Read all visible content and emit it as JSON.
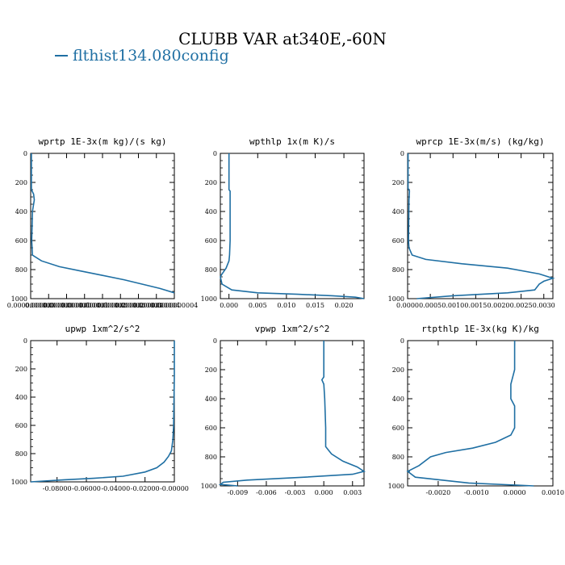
{
  "title": "CLUBB VAR at340E,-60N",
  "legend": {
    "label": "flthist134.080config",
    "color": "#1f6fa3"
  },
  "chart_data": [
    {
      "type": "line",
      "title": "wprtp   1E-3x(m kg)/(s kg)",
      "xlim": [
        0,
        4e-10
      ],
      "ylim": [
        1000,
        0
      ],
      "xticks": [
        0,
        5e-11,
        1e-10,
        1.5e-10,
        2e-10,
        2.5e-10,
        3e-10,
        3.5e-10,
        4e-10
      ],
      "xtick_labels": [
        "0.0000000000",
        "0.0000000000",
        "0.0000000001",
        "0.0000000001",
        "0.0000000002",
        "0.0000000002",
        "0.0000000003",
        "0.0000000004",
        "0.0000000004"
      ],
      "yticks": [
        0,
        200,
        400,
        600,
        800,
        1000
      ],
      "ytick_labels": [
        "0",
        "200",
        "400",
        "600",
        "800",
        "1000"
      ],
      "series": [
        {
          "x": [
            2e-12,
            2e-12,
            8e-12,
            1e-11,
            5e-12,
            3e-12,
            5e-12,
            3e-11,
            8e-11,
            1.4e-10,
            2e-10,
            2.6e-10,
            3.1e-10,
            3.6e-10,
            4e-10
          ],
          "y": [
            0,
            250,
            280,
            320,
            400,
            600,
            700,
            740,
            780,
            810,
            840,
            870,
            900,
            930,
            960
          ]
        }
      ]
    },
    {
      "type": "line",
      "title": "wpthlp   1x(m K)/s",
      "xlim": [
        -0.0015,
        0.0235
      ],
      "ylim": [
        1000,
        0
      ],
      "xticks": [
        0,
        0.005,
        0.01,
        0.015,
        0.02
      ],
      "xtick_labels": [
        "0.000",
        "0.005",
        "0.010",
        "0.015",
        "0.020"
      ],
      "yticks": [
        0,
        200,
        400,
        600,
        800,
        1000
      ],
      "ytick_labels": [
        "0",
        "200",
        "400",
        "600",
        "800",
        "1000"
      ],
      "series": [
        {
          "x": [
            0.0,
            0.0,
            0.0002,
            0.0002,
            0.0002,
            0.0001,
            0.0,
            -0.0005,
            -0.0012,
            -0.0015,
            -0.0012,
            0.0005,
            0.005,
            0.012,
            0.018,
            0.022,
            0.0235
          ],
          "y": [
            0,
            250,
            260,
            400,
            600,
            700,
            740,
            790,
            830,
            850,
            900,
            940,
            960,
            970,
            980,
            990,
            1000
          ]
        }
      ]
    },
    {
      "type": "line",
      "title": "wprcp   1E-3x(m/s) (kg/kg)",
      "xlim": [
        0,
        0.0032
      ],
      "ylim": [
        1000,
        0
      ],
      "xticks": [
        0,
        0.0005,
        0.001,
        0.0015,
        0.002,
        0.0025,
        0.003
      ],
      "xtick_labels": [
        "0.0000",
        "0.0005",
        "0.0010",
        "0.0015",
        "0.0020",
        "0.0025",
        "0.0030"
      ],
      "yticks": [
        0,
        200,
        400,
        600,
        800,
        1000
      ],
      "ytick_labels": [
        "0",
        "200",
        "400",
        "600",
        "800",
        "1000"
      ],
      "series": [
        {
          "x": [
            1e-05,
            1e-05,
            4e-05,
            3e-05,
            2e-05,
            3e-05,
            0.0001,
            0.0004,
            0.0012,
            0.0022,
            0.0029,
            0.0032,
            0.003,
            0.0029,
            0.0028,
            0.0022,
            0.001,
            0.0002
          ],
          "y": [
            0,
            240,
            260,
            320,
            600,
            650,
            700,
            730,
            760,
            790,
            830,
            860,
            880,
            900,
            940,
            960,
            980,
            1000
          ]
        }
      ]
    },
    {
      "type": "line",
      "title": "upwp   1xm^2/s^2",
      "xlim": [
        -0.098,
        0.0
      ],
      "ylim": [
        1000,
        0
      ],
      "xticks": [
        -0.08,
        -0.06,
        -0.04,
        -0.02,
        0
      ],
      "xtick_labels": [
        "-0.08000",
        "-0.06000",
        "-0.04000",
        "-0.02000",
        "-0.00000"
      ],
      "yticks": [
        0,
        200,
        400,
        600,
        800,
        1000
      ],
      "ytick_labels": [
        "0",
        "200",
        "400",
        "600",
        "800",
        "1000"
      ],
      "series": [
        {
          "x": [
            0.0,
            0.0,
            -0.0002,
            -0.0005,
            -0.001,
            -0.002,
            -0.004,
            -0.007,
            -0.012,
            -0.02,
            -0.035,
            -0.055,
            -0.075,
            -0.098
          ],
          "y": [
            0,
            250,
            400,
            600,
            700,
            780,
            820,
            860,
            900,
            930,
            960,
            975,
            985,
            1000
          ]
        }
      ]
    },
    {
      "type": "line",
      "title": "vpwp   1xm^2/s^2",
      "xlim": [
        -0.0108,
        0.0042
      ],
      "ylim": [
        1000,
        0
      ],
      "xticks": [
        -0.009,
        -0.006,
        -0.003,
        0,
        0.003
      ],
      "xtick_labels": [
        "-0.009",
        "-0.006",
        "-0.003",
        "0.000",
        "0.003"
      ],
      "yticks": [
        0,
        200,
        400,
        600,
        800,
        1000
      ],
      "ytick_labels": [
        "0",
        "200",
        "400",
        "600",
        "800",
        "1000"
      ],
      "series": [
        {
          "x": [
            0.0,
            0.0,
            -0.0002,
            0.0,
            0.0001,
            0.0002,
            0.0002,
            0.0008,
            0.002,
            0.0035,
            0.0042,
            0.003,
            -0.002,
            -0.008,
            -0.0105,
            -0.0108,
            -0.009
          ],
          "y": [
            0,
            250,
            270,
            300,
            400,
            600,
            730,
            780,
            830,
            870,
            900,
            920,
            940,
            960,
            975,
            990,
            1000
          ]
        }
      ]
    },
    {
      "type": "line",
      "title": "rtpthlp   1E-3x(kg K)/kg",
      "xlim": [
        -0.0028,
        0.001
      ],
      "ylim": [
        1000,
        0
      ],
      "xticks": [
        -0.002,
        -0.001,
        0,
        0.001
      ],
      "xtick_labels": [
        "-0.0020",
        "-0.0010",
        "0.0000",
        "0.0010"
      ],
      "yticks": [
        0,
        200,
        400,
        600,
        800,
        1000
      ],
      "ytick_labels": [
        "0",
        "200",
        "400",
        "600",
        "800",
        "1000"
      ],
      "series": [
        {
          "x": [
            0.0,
            0.0,
            -0.0001,
            -0.0001,
            0.0,
            0.0,
            -0.0001,
            -0.0005,
            -0.0011,
            -0.0018,
            -0.0022,
            -0.0025,
            -0.0028,
            -0.0026,
            -0.0012,
            0.0005
          ],
          "y": [
            0,
            200,
            300,
            400,
            450,
            600,
            650,
            700,
            740,
            770,
            800,
            860,
            900,
            940,
            980,
            1000
          ]
        }
      ]
    }
  ]
}
